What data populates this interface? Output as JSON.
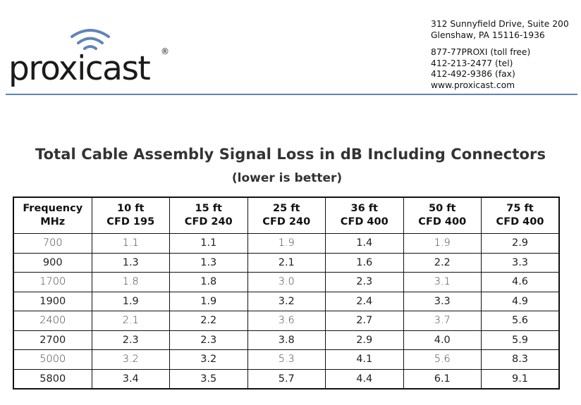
{
  "logo": {
    "word": "proxicast",
    "reg": "®"
  },
  "contact": {
    "address_line1": "312 Sunnyfield Drive, Suite 200",
    "address_line2": "Glenshaw, PA 15116-1936",
    "phone_tollfree": "877-77PROXI (toll free)",
    "phone_tel": "412-213-2477 (tel)",
    "fax": "412-492-9386 (fax)",
    "website": "www.proxicast.com"
  },
  "colors": {
    "rule": "#5f84b8",
    "logo_waves": "#5f84b8",
    "text": "#111111",
    "heading": "#333333"
  },
  "title": "Total Cable Assembly Signal Loss in dB Including Connectors",
  "subtitle": "(lower is better)",
  "table": {
    "headers": [
      {
        "line1": "Frequency",
        "line2": "MHz"
      },
      {
        "line1": "10 ft",
        "line2": "CFD 195"
      },
      {
        "line1": "15 ft",
        "line2": "CFD 240"
      },
      {
        "line1": "25 ft",
        "line2": "CFD 240"
      },
      {
        "line1": "36 ft",
        "line2": "CFD 400"
      },
      {
        "line1": "50 ft",
        "line2": "CFD 400"
      },
      {
        "line1": "75 ft",
        "line2": "CFD 400"
      }
    ],
    "rows": [
      [
        "700",
        "1.1",
        "1.1",
        "1.9",
        "1.4",
        "1.9",
        "2.9"
      ],
      [
        "900",
        "1.3",
        "1.3",
        "2.1",
        "1.6",
        "2.2",
        "3.3"
      ],
      [
        "1700",
        "1.8",
        "1.8",
        "3.0",
        "2.3",
        "3.1",
        "4.6"
      ],
      [
        "1900",
        "1.9",
        "1.9",
        "3.2",
        "2.4",
        "3.3",
        "4.9"
      ],
      [
        "2400",
        "2.1",
        "2.2",
        "3.6",
        "2.7",
        "3.7",
        "5.6"
      ],
      [
        "2700",
        "2.3",
        "2.3",
        "3.8",
        "2.9",
        "4.0",
        "5.9"
      ],
      [
        "5000",
        "3.2",
        "3.2",
        "5.3",
        "4.1",
        "5.6",
        "8.3"
      ],
      [
        "5800",
        "3.4",
        "3.5",
        "5.7",
        "4.4",
        "6.1",
        "9.1"
      ]
    ]
  }
}
